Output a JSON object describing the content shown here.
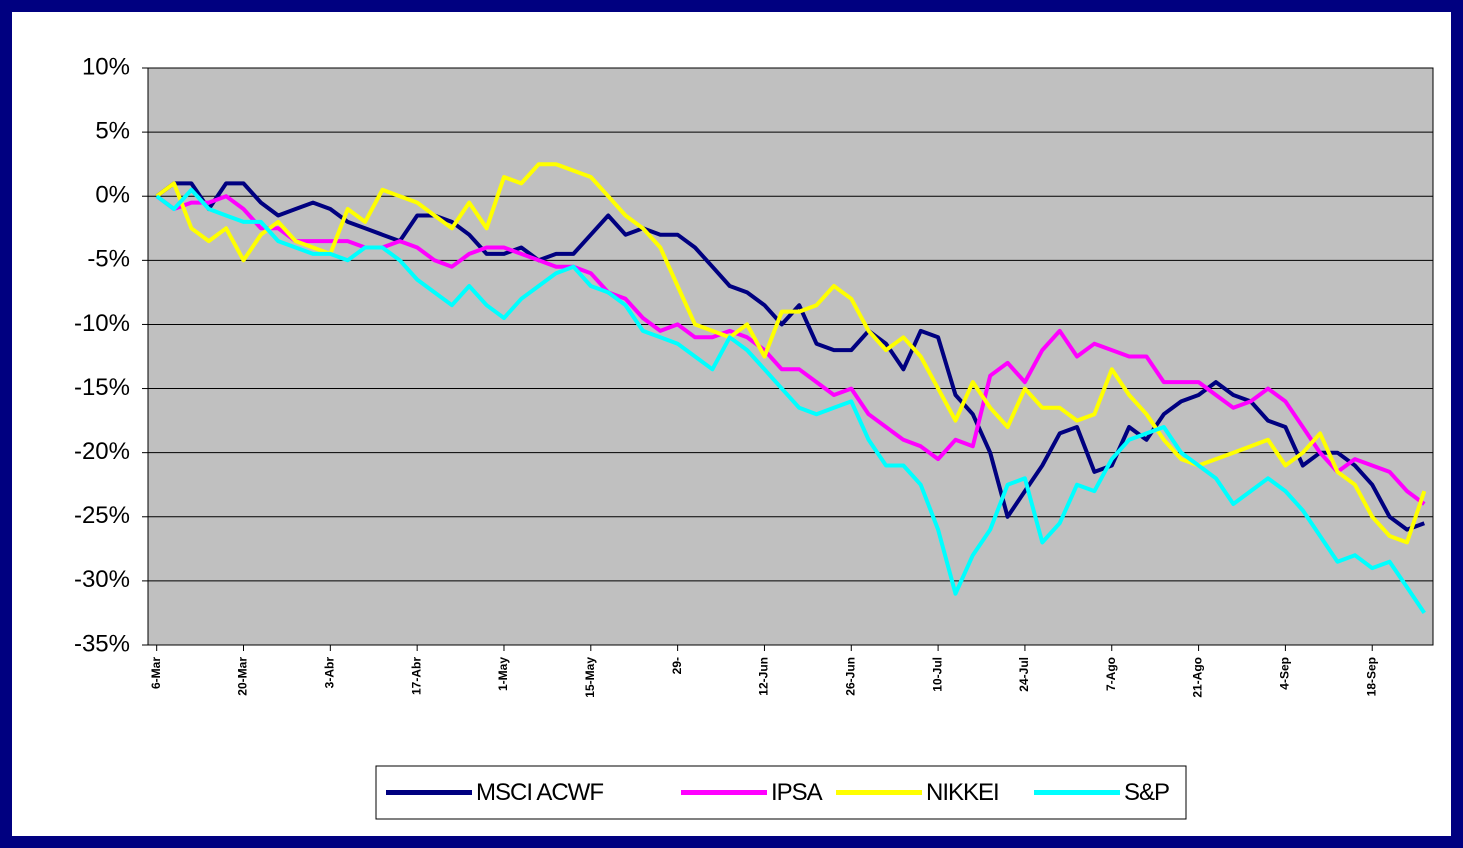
{
  "chart_data": {
    "type": "line",
    "categories": [
      "6-Mar",
      null,
      null,
      null,
      null,
      "20-Mar",
      null,
      null,
      null,
      null,
      "3-Abr",
      null,
      null,
      null,
      null,
      "17-Abr",
      null,
      null,
      null,
      null,
      "1-May",
      null,
      null,
      null,
      null,
      "15-May",
      null,
      null,
      null,
      null,
      "29-",
      null,
      null,
      null,
      null,
      "12-Jun",
      null,
      null,
      null,
      null,
      "26-Jun",
      null,
      null,
      null,
      null,
      "10-Jul",
      null,
      null,
      null,
      null,
      "24-Jul",
      null,
      null,
      null,
      null,
      "7-Ago",
      null,
      null,
      null,
      null,
      "21-Ago",
      null,
      null,
      null,
      null,
      "4-Sep",
      null,
      null,
      null,
      null,
      "18-Sep",
      null,
      null,
      null
    ],
    "series": [
      {
        "name": "MSCI ACWF",
        "color": "#000080",
        "values": [
          0,
          1,
          1,
          -1,
          1,
          1,
          -0.5,
          -1.5,
          -1,
          -0.5,
          -1,
          -2,
          -2.5,
          -3,
          -3.5,
          -1.5,
          -1.5,
          -2,
          -3,
          -4.5,
          -4.5,
          -4,
          -5,
          -4.5,
          -4.5,
          -3,
          -1.5,
          -3,
          -2.5,
          -3,
          -3,
          -4,
          -5.5,
          -7,
          -7.5,
          -8.5,
          -10,
          -8.5,
          -11.5,
          -12,
          -12,
          -10.5,
          -11.5,
          -13.5,
          -10.5,
          -11,
          -15.5,
          -17,
          -20,
          -25,
          -23,
          -21,
          -18.5,
          -18,
          -21.5,
          -21,
          -18,
          -19,
          -17,
          -16,
          -15.5,
          -14.5,
          -15.5,
          -16,
          -17.5,
          -18,
          -21,
          -20,
          -20,
          -21,
          -22.5,
          -25,
          -26,
          -25.5
        ]
      },
      {
        "name": "IPSA",
        "color": "#ff00ff",
        "values": [
          0,
          -1,
          -0.5,
          -0.5,
          0,
          -1,
          -2.5,
          -2.5,
          -3.5,
          -3.5,
          -3.5,
          -3.5,
          -4,
          -4,
          -3.5,
          -4,
          -5,
          -5.5,
          -4.5,
          -4,
          -4,
          -4.5,
          -5,
          -5.5,
          -5.5,
          -6,
          -7.5,
          -8,
          -9.5,
          -10.5,
          -10,
          -11,
          -11,
          -10.5,
          -11,
          -12,
          -13.5,
          -13.5,
          -14.5,
          -15.5,
          -15,
          -17,
          -18,
          -19,
          -19.5,
          -20.5,
          -19,
          -19.5,
          -14,
          -13,
          -14.5,
          -12,
          -10.5,
          -12.5,
          -11.5,
          -12,
          -12.5,
          -12.5,
          -14.5,
          -14.5,
          -14.5,
          -15.5,
          -16.5,
          -16,
          -15,
          -16,
          -18,
          -20,
          -21.5,
          -20.5,
          -21,
          -21.5,
          -23,
          -24
        ]
      },
      {
        "name": "NIKKEI",
        "color": "#ffff00",
        "values": [
          0,
          1,
          -2.5,
          -3.5,
          -2.5,
          -5,
          -3,
          -2,
          -3.5,
          -4,
          -4.5,
          -1,
          -2,
          0.5,
          0,
          -0.5,
          -1.5,
          -2.5,
          -0.5,
          -2.5,
          1.5,
          1,
          2.5,
          2.5,
          2,
          1.5,
          0,
          -1.5,
          -2.5,
          -4,
          -7,
          -10,
          -10.5,
          -11,
          -10,
          -12.5,
          -9,
          -9,
          -8.5,
          -7,
          -8,
          -10.5,
          -12,
          -11,
          -12.5,
          -15,
          -17.5,
          -14.5,
          -16.5,
          -18,
          -15,
          -16.5,
          -16.5,
          -17.5,
          -17,
          -13.5,
          -15.5,
          -17,
          -19,
          -20.5,
          -21,
          -20.5,
          -20,
          -19.5,
          -19,
          -21,
          -20,
          -18.5,
          -21.5,
          -22.5,
          -25,
          -26.5,
          -27,
          -23
        ]
      },
      {
        "name": "S&P",
        "color": "#00ffff",
        "values": [
          0,
          -1,
          0.5,
          -1,
          -1.5,
          -2,
          -2,
          -3.5,
          -4,
          -4.5,
          -4.5,
          -5,
          -4,
          -4,
          -5,
          -6.5,
          -7.5,
          -8.5,
          -7,
          -8.5,
          -9.5,
          -8,
          -7,
          -6,
          -5.5,
          -7,
          -7.5,
          -8.5,
          -10.5,
          -11,
          -11.5,
          -12.5,
          -13.5,
          -11,
          -12,
          -13.5,
          -15,
          -16.5,
          -17,
          -16.5,
          -16,
          -19,
          -21,
          -21,
          -22.5,
          -26,
          -31,
          -28,
          -26,
          -22.5,
          -22,
          -27,
          -25.5,
          -22.5,
          -23,
          -20.5,
          -19,
          -18.5,
          -18,
          -20,
          -21,
          -22,
          -24,
          -23,
          -22,
          -23,
          -24.5,
          -26.5,
          -28.5,
          -28,
          -29,
          -28.5,
          -30.5,
          -32.5
        ]
      }
    ],
    "ylim": [
      -35,
      10
    ],
    "yticks": [
      {
        "value": 10,
        "label": "10%"
      },
      {
        "value": 5,
        "label": "5%"
      },
      {
        "value": 0,
        "label": "0%"
      },
      {
        "value": -5,
        "label": "-5%"
      },
      {
        "value": -10,
        "label": "-10%"
      },
      {
        "value": -15,
        "label": "-15%"
      },
      {
        "value": -20,
        "label": "-20%"
      },
      {
        "value": -25,
        "label": "-25%"
      },
      {
        "value": -30,
        "label": "-30%"
      },
      {
        "value": -35,
        "label": "-35%"
      }
    ],
    "grid": true,
    "legend": "bottom"
  }
}
